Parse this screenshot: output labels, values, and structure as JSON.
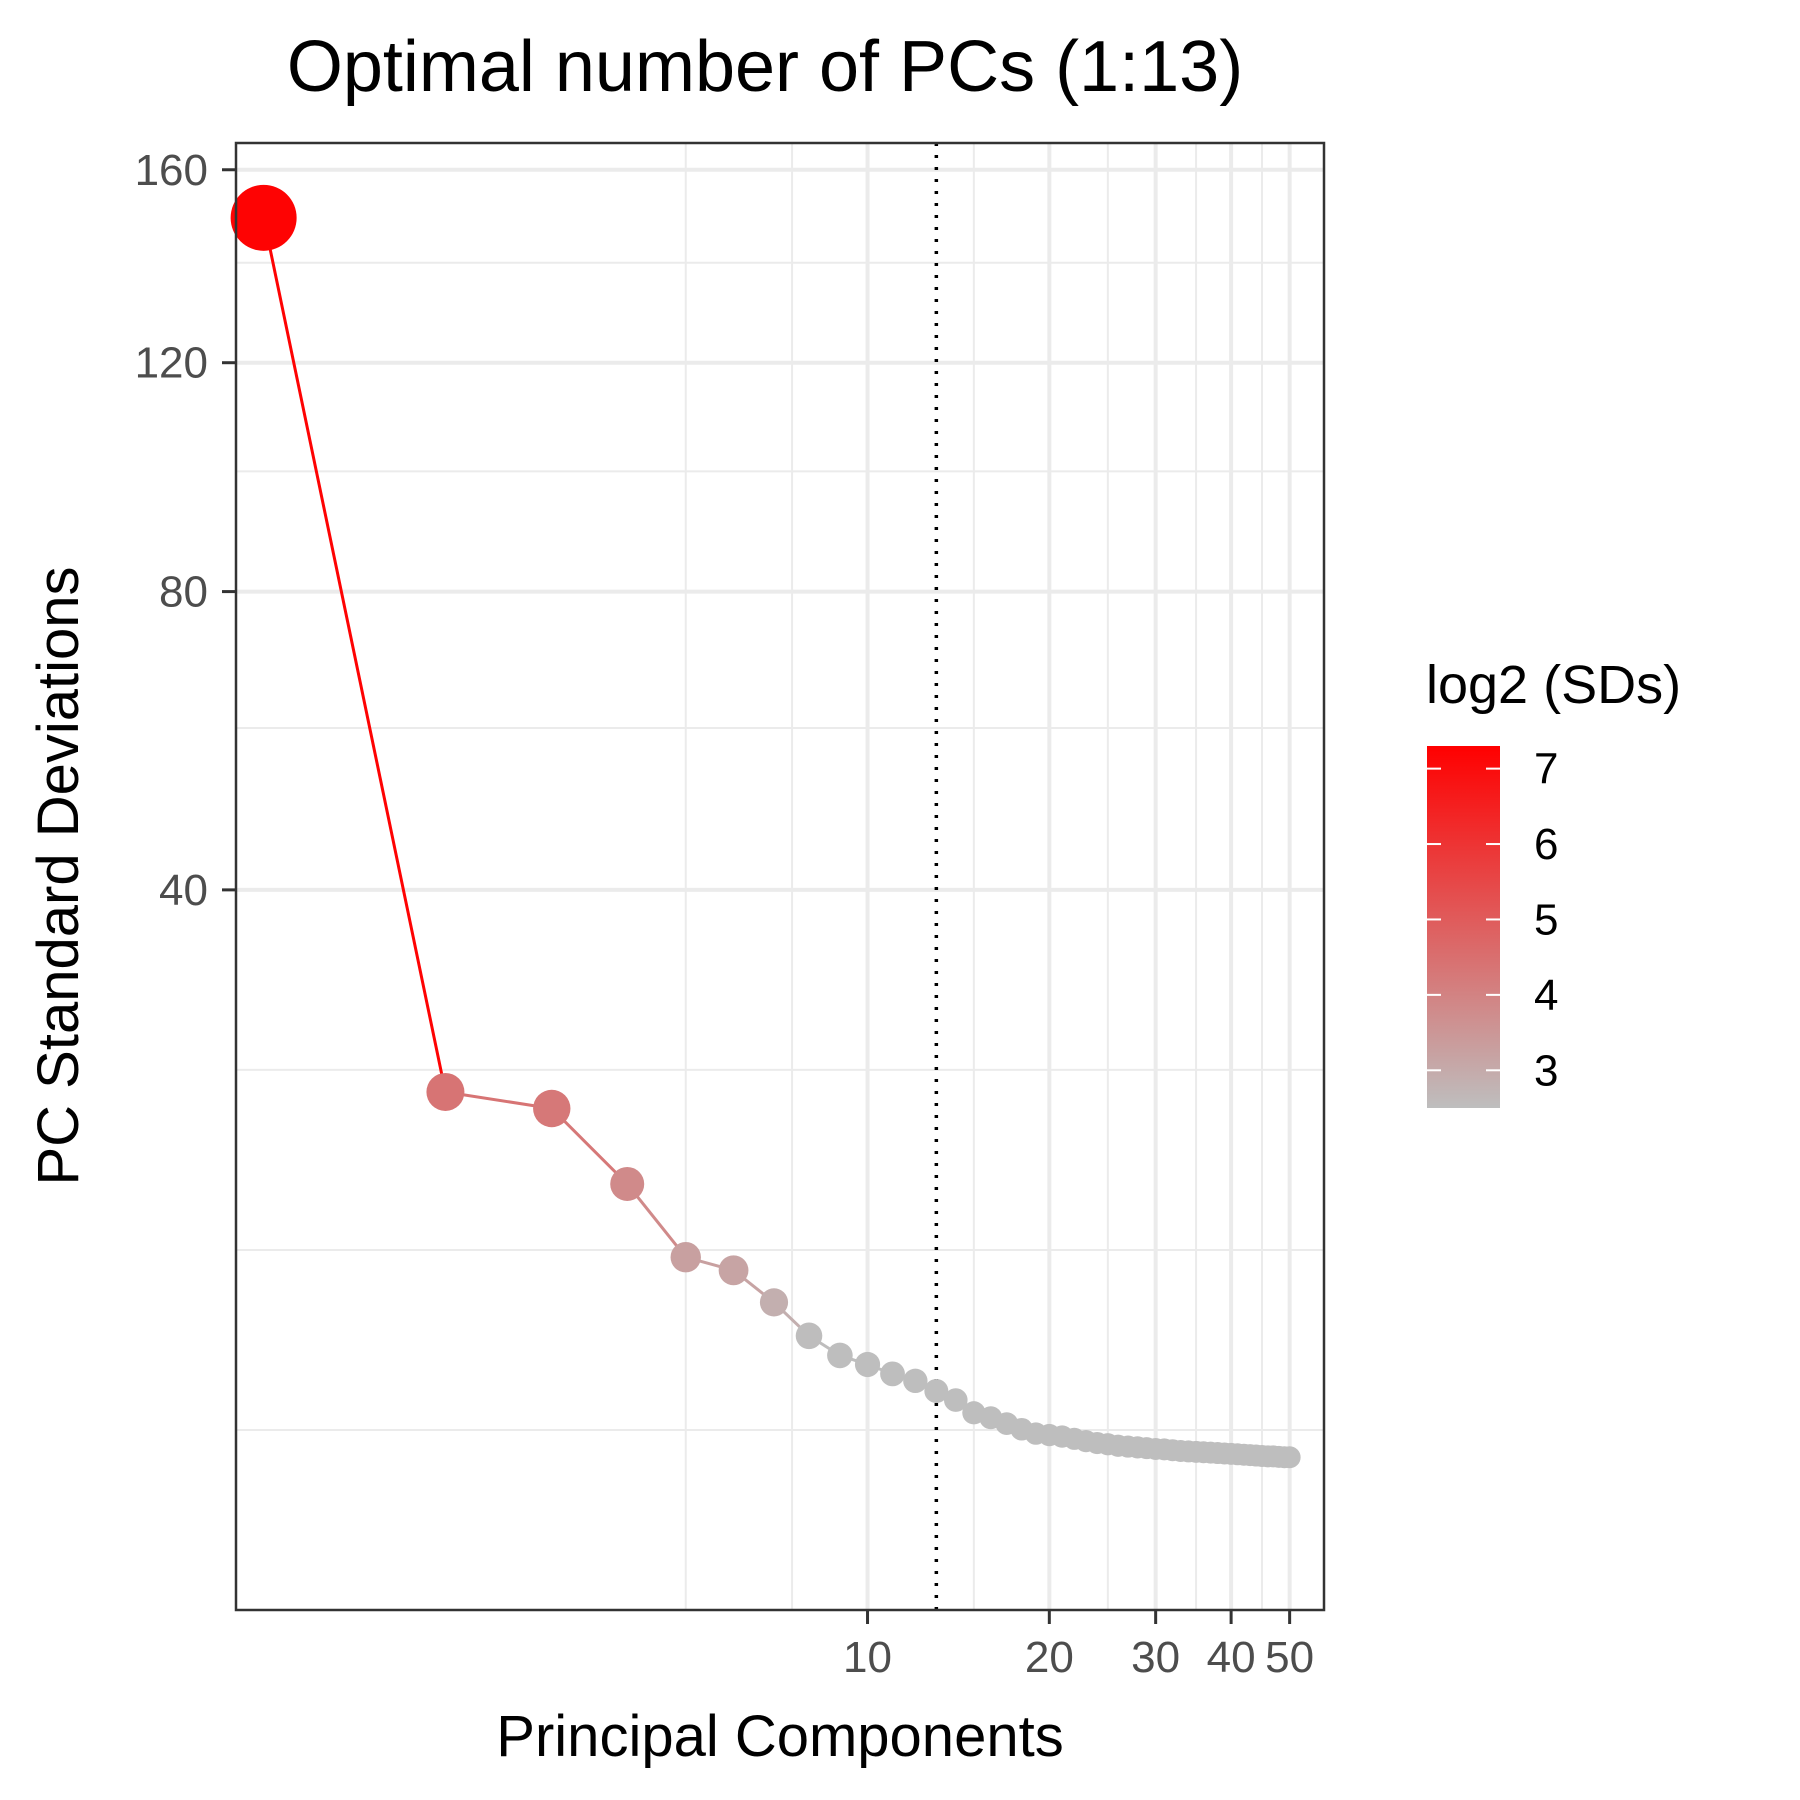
{
  "chart_data": {
    "type": "scatter",
    "title": "Optimal number of PCs (1:13)",
    "xlabel": "Principal Components",
    "ylabel": "PC Standard Deviations",
    "x_scale": "log",
    "y_scale": "sqrt",
    "xlim": [
      0.9,
      57
    ],
    "ylim": [
      0,
      166
    ],
    "x_ticks": [
      10,
      20,
      30,
      40,
      50
    ],
    "x_minor_ticks": [
      5,
      7.5,
      15,
      25,
      35,
      45
    ],
    "y_ticks": [
      40,
      80,
      120,
      160
    ],
    "y_minor_ticks": [
      2.5,
      10,
      22.5,
      60,
      100,
      140
    ],
    "optimal_pc": 13,
    "line_style": "dotted",
    "x": [
      1,
      2,
      3,
      4,
      5,
      6,
      7,
      8,
      9,
      10,
      11,
      12,
      13,
      14,
      15,
      16,
      17,
      18,
      19,
      20,
      21,
      22,
      23,
      24,
      25,
      26,
      27,
      28,
      29,
      30,
      31,
      32,
      33,
      34,
      35,
      36,
      37,
      38,
      39,
      40,
      41,
      42,
      43,
      44,
      45,
      46,
      47,
      48,
      49,
      50
    ],
    "y": [
      149.5,
      20.7,
      19.4,
      14.0,
      9.6,
      8.9,
      7.3,
      5.8,
      5.0,
      4.65,
      4.3,
      4.05,
      3.7,
      3.4,
      3.0,
      2.85,
      2.68,
      2.52,
      2.4,
      2.36,
      2.32,
      2.26,
      2.2,
      2.15,
      2.12,
      2.08,
      2.06,
      2.04,
      2.02,
      2.0,
      1.99,
      1.97,
      1.95,
      1.94,
      1.93,
      1.92,
      1.91,
      1.9,
      1.89,
      1.88,
      1.87,
      1.86,
      1.85,
      1.84,
      1.83,
      1.82,
      1.82,
      1.81,
      1.8,
      1.8
    ],
    "legend": {
      "title": "log2 (SDs)",
      "position": "right",
      "scale": "continuous",
      "min": 2.5,
      "max": 7.3,
      "ticks": [
        3,
        4,
        5,
        6,
        7
      ],
      "low_color": "#bebebe",
      "high_color": "#ff0000"
    },
    "colors": {
      "grid": "#ebebeb",
      "panel_border": "#333333",
      "axis_tick": "#333333",
      "vline": "#000000"
    }
  }
}
